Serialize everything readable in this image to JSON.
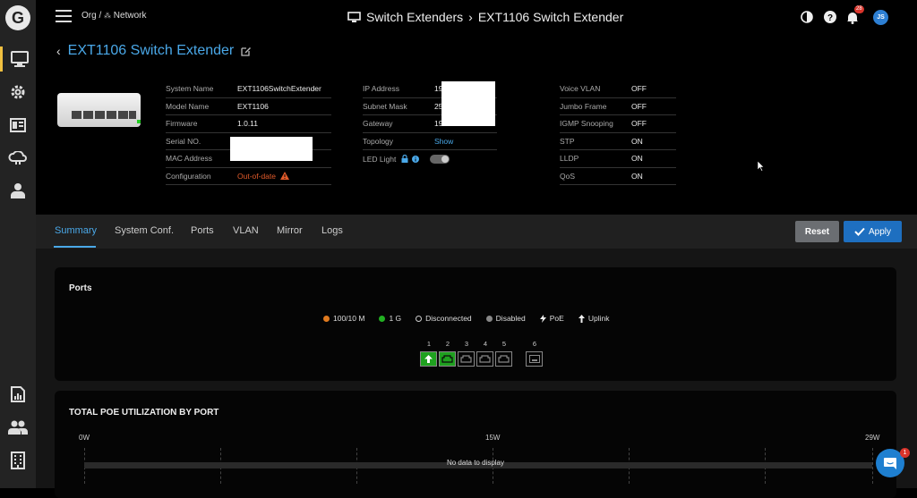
{
  "logo": {
    "letter": "G"
  },
  "topbar": {
    "org_label": "Org /",
    "network_label": "Network",
    "section": "Switch Extenders",
    "separator": "›",
    "device": "EXT1106 Switch Extender",
    "notification_count": "28",
    "user_initials": "JS"
  },
  "page": {
    "title": "EXT1106 Switch Extender"
  },
  "info": {
    "col1": [
      {
        "key": "System Name",
        "value": "EXT1106SwitchExtender"
      },
      {
        "key": "Model Name",
        "value": "EXT1106"
      },
      {
        "key": "Firmware",
        "value": "1.0.11"
      },
      {
        "key": "Serial NO.",
        "value": ""
      },
      {
        "key": "MAC Address",
        "value": ""
      },
      {
        "key": "Configuration",
        "value": "Out-of-date"
      }
    ],
    "col2": [
      {
        "key": "IP Address",
        "value": "19"
      },
      {
        "key": "Subnet Mask",
        "value": "25"
      },
      {
        "key": "Gateway",
        "value": "19"
      },
      {
        "key": "Topology",
        "value": "Show"
      },
      {
        "key": "LED Light",
        "value": ""
      }
    ],
    "col3": [
      {
        "key": "Voice VLAN",
        "value": "OFF"
      },
      {
        "key": "Jumbo Frame",
        "value": "OFF"
      },
      {
        "key": "IGMP Snooping",
        "value": "OFF"
      },
      {
        "key": "STP",
        "value": "ON"
      },
      {
        "key": "LLDP",
        "value": "ON"
      },
      {
        "key": "QoS",
        "value": "ON"
      }
    ]
  },
  "tabs": [
    "Summary",
    "System Conf.",
    "Ports",
    "VLAN",
    "Mirror",
    "Logs"
  ],
  "buttons": {
    "reset": "Reset",
    "apply": "Apply"
  },
  "ports_card": {
    "title": "Ports",
    "legend": [
      {
        "label": "100/10 M",
        "color": "#e07a1f"
      },
      {
        "label": "1 G",
        "color": "#22b022"
      },
      {
        "label": "Disconnected",
        "color": "#000000"
      },
      {
        "label": "Disabled",
        "color": "#888888"
      },
      {
        "label": "PoE",
        "icon": "bolt-icon"
      },
      {
        "label": "Uplink",
        "icon": "arrow-up-icon"
      }
    ],
    "ports": [
      {
        "num": "1",
        "status": "1G-uplink"
      },
      {
        "num": "2",
        "status": "1G"
      },
      {
        "num": "3",
        "status": "disconnected"
      },
      {
        "num": "4",
        "status": "disconnected"
      },
      {
        "num": "5",
        "status": "disconnected"
      },
      {
        "num": "6",
        "status": "sfp"
      }
    ]
  },
  "poe_card": {
    "title": "TOTAL POE UTILIZATION BY PORT",
    "scale": [
      "0W",
      "15W",
      "29W"
    ],
    "empty_text": "No data to display"
  },
  "chat": {
    "badge": "1"
  },
  "colors": {
    "accent": "#4aa8e8",
    "warning": "#e05a2a",
    "apply": "#1e6fc0",
    "reset": "#6b6e72"
  }
}
